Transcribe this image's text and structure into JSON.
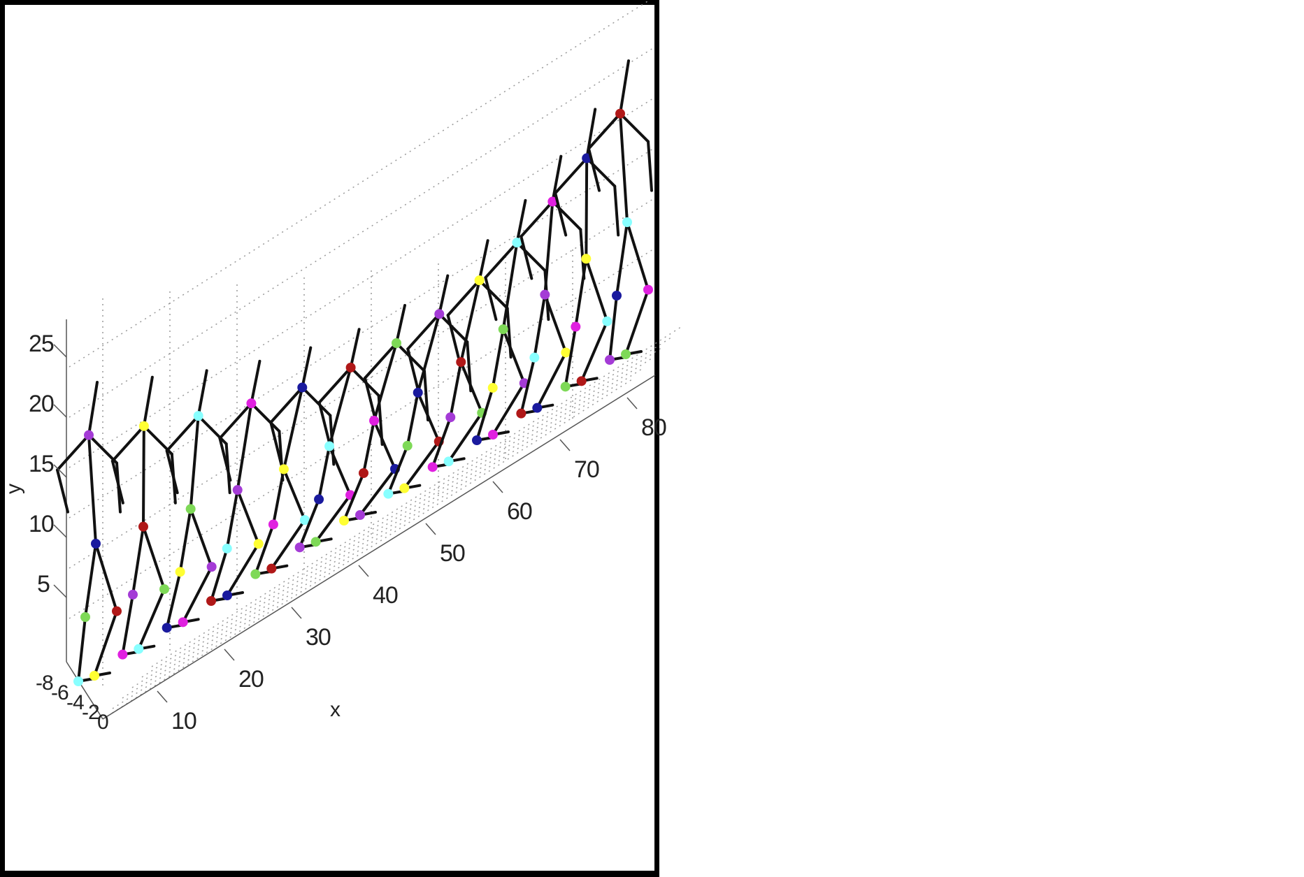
{
  "chart_data": {
    "type": "scatter",
    "view": "3d",
    "title": "",
    "xlabel": "x",
    "ylabel": "y",
    "zlabel": "",
    "x_ticks": [
      "10",
      "20",
      "30",
      "40",
      "50",
      "60",
      "70",
      "80"
    ],
    "y_ticks": [
      "5",
      "10",
      "15",
      "20",
      "25"
    ],
    "z_ticks": [
      "-8",
      "-6",
      "-4",
      "-2",
      "0"
    ],
    "grid": true,
    "grid_style": "dotted",
    "content": "sequence of stick-figure skeleton poses",
    "marker_colors": [
      "#1a1a9e",
      "#b01818",
      "#7ed957",
      "#a43bd6",
      "#ffff33",
      "#88ffff",
      "#e020e0"
    ],
    "skeleton_color": "#111111"
  }
}
